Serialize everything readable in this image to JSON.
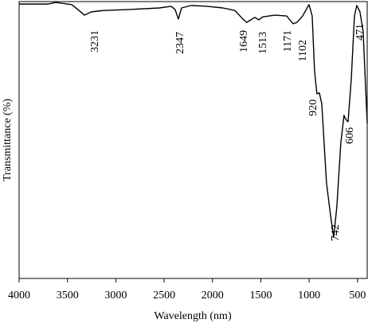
{
  "chart_data": {
    "type": "line",
    "xlabel": "Wavelength (nm)",
    "ylabel": "Transmittance (%)",
    "xlim": [
      4000,
      400
    ],
    "ylim": [
      0,
      100
    ],
    "xticks": [
      4000,
      3500,
      3000,
      2500,
      2000,
      1500,
      1000,
      500
    ],
    "series": [
      {
        "color": "#000000",
        "x": [
          4000,
          3704,
          3621,
          3456,
          3374,
          3325,
          3251,
          3127,
          2880,
          2550,
          2427,
          2386,
          2353,
          2320,
          2221,
          2056,
          1892,
          1768,
          1686,
          1645,
          1604,
          1563,
          1521,
          1480,
          1357,
          1233,
          1167,
          1126,
          1068,
          1002,
          969,
          944,
          920,
          895,
          870,
          821,
          780,
          747,
          714,
          673,
          640,
          623,
          598,
          565,
          532,
          508,
          475,
          442,
          400
        ],
        "values": [
          99.1,
          99.1,
          99.7,
          98.9,
          96.6,
          95.1,
          96.3,
          96.8,
          97.1,
          97.7,
          98.3,
          97.1,
          93.7,
          97.7,
          98.6,
          98.3,
          97.7,
          96.8,
          93.7,
          92.5,
          93.4,
          94.3,
          93.4,
          94.5,
          95.1,
          94.8,
          92.0,
          92.5,
          94.8,
          98.9,
          94.8,
          74.7,
          66.7,
          67.0,
          63.2,
          34.5,
          23.0,
          14.9,
          25.9,
          48.9,
          58.9,
          57.5,
          56.6,
          71.8,
          94.8,
          98.6,
          96.3,
          89.1,
          56.0
        ]
      }
    ],
    "annotations": [
      {
        "text": "3231",
        "x": 3226,
        "y": 89.7
      },
      {
        "text": "2347",
        "x": 2345,
        "y": 89.1
      },
      {
        "text": "1649",
        "x": 1686,
        "y": 89.7
      },
      {
        "text": "1513",
        "x": 1488,
        "y": 89.1
      },
      {
        "text": "1171",
        "x": 1233,
        "y": 89.7
      },
      {
        "text": "1102",
        "x": 1076,
        "y": 86.2
      },
      {
        "text": "920",
        "x": 969,
        "y": 64.7
      },
      {
        "text": "742",
        "x": 739,
        "y": 19.5
      },
      {
        "text": "606",
        "x": 590,
        "y": 54.6
      },
      {
        "text": "471",
        "x": 483,
        "y": 92.0
      }
    ]
  }
}
